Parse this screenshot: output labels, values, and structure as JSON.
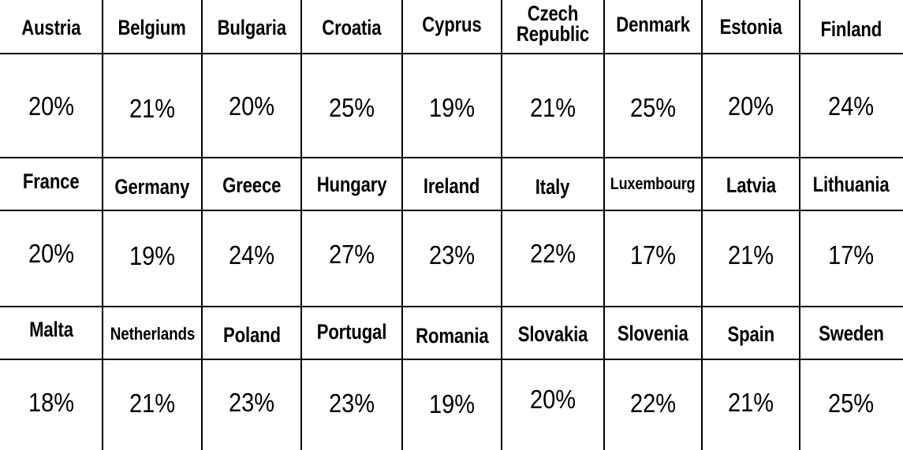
{
  "chart_data": {
    "type": "table",
    "columns": 9,
    "rows": [
      {
        "countries": [
          "Austria",
          "Belgium",
          "Bulgaria",
          "Croatia",
          "Cyprus",
          "Czech Republic",
          "Denmark",
          "Estonia",
          "Finland"
        ],
        "rates": [
          "20%",
          "21%",
          "20%",
          "25%",
          "19%",
          "21%",
          "25%",
          "20%",
          "24%"
        ]
      },
      {
        "countries": [
          "France",
          "Germany",
          "Greece",
          "Hungary",
          "Ireland",
          "Italy",
          "Luxembourg",
          "Latvia",
          "Lithuania"
        ],
        "rates": [
          "20%",
          "19%",
          "24%",
          "27%",
          "23%",
          "22%",
          "17%",
          "21%",
          "17%"
        ]
      },
      {
        "countries": [
          "Malta",
          "Netherlands",
          "Poland",
          "Portugal",
          "Romania",
          "Slovakia",
          "Slovenia",
          "Spain",
          "Sweden"
        ],
        "rates": [
          "18%",
          "21%",
          "23%",
          "23%",
          "19%",
          "20%",
          "22%",
          "21%",
          "25%"
        ]
      }
    ]
  }
}
